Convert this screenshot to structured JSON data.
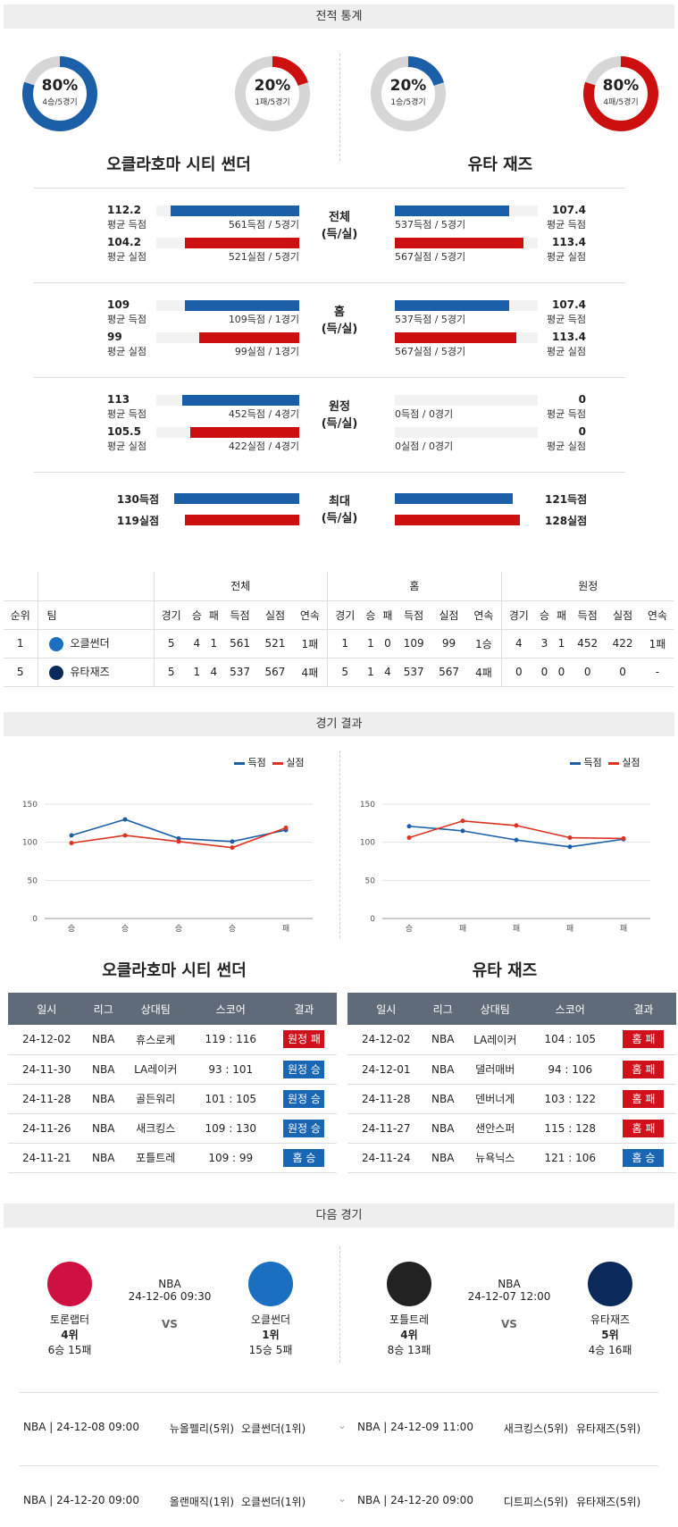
{
  "sections": {
    "stats": "전적 통계",
    "results": "경기 결과",
    "next": "다음 경기"
  },
  "teams": {
    "home": "오클라호마 시티 썬더",
    "away": "유타 재즈"
  },
  "donuts": [
    {
      "pct": "80%",
      "sub": "4승/5경기",
      "value": 0.8,
      "color": "#1a5fa8"
    },
    {
      "pct": "20%",
      "sub": "1패/5경기",
      "value": 0.2,
      "color": "#cc1010"
    },
    {
      "pct": "20%",
      "sub": "1승/5경기",
      "value": 0.2,
      "color": "#1a5fa8"
    },
    {
      "pct": "80%",
      "sub": "4패/5경기",
      "value": 0.8,
      "color": "#cc1010"
    }
  ],
  "stat_groups": [
    {
      "mid": [
        "전체",
        "(득/실)"
      ],
      "left": [
        {
          "val": "112.2",
          "lbl": "평균 득점",
          "cap": "561득점 / 5경기",
          "ratio": 0.9,
          "type": "blue"
        },
        {
          "val": "104.2",
          "lbl": "평균 실점",
          "cap": "521실점 / 5경기",
          "ratio": 0.8,
          "type": "red"
        }
      ],
      "right": [
        {
          "val": "107.4",
          "lbl": "평균 득점",
          "cap": "537득점 / 5경기",
          "ratio": 0.8,
          "type": "blue"
        },
        {
          "val": "113.4",
          "lbl": "평균 실점",
          "cap": "567실점 / 5경기",
          "ratio": 0.9,
          "type": "red"
        }
      ]
    },
    {
      "mid": [
        "홈",
        "(득/실)"
      ],
      "left": [
        {
          "val": "109",
          "lbl": "평균 득점",
          "cap": "109득점 / 1경기",
          "ratio": 0.8,
          "type": "blue"
        },
        {
          "val": "99",
          "lbl": "평균 실점",
          "cap": "99실점 / 1경기",
          "ratio": 0.7,
          "type": "red"
        }
      ],
      "right": [
        {
          "val": "107.4",
          "lbl": "평균 득점",
          "cap": "537득점 / 5경기",
          "ratio": 0.8,
          "type": "blue"
        },
        {
          "val": "113.4",
          "lbl": "평균 실점",
          "cap": "567실점 / 5경기",
          "ratio": 0.85,
          "type": "red"
        }
      ]
    },
    {
      "mid": [
        "원정",
        "(득/실)"
      ],
      "left": [
        {
          "val": "113",
          "lbl": "평균 득점",
          "cap": "452득점 / 4경기",
          "ratio": 0.82,
          "type": "blue"
        },
        {
          "val": "105.5",
          "lbl": "평균 실점",
          "cap": "422실점 / 4경기",
          "ratio": 0.76,
          "type": "red"
        }
      ],
      "right": [
        {
          "val": "0",
          "lbl": "평균 득점",
          "cap": "0득점 / 0경기",
          "ratio": 0,
          "type": "blue"
        },
        {
          "val": "0",
          "lbl": "평균 실점",
          "cap": "0실점 / 0경기",
          "ratio": 0,
          "type": "red"
        }
      ]
    }
  ],
  "max_group": {
    "mid": [
      "최대",
      "(득/실)"
    ],
    "left": [
      {
        "val": "130득점",
        "ratio": 0.93,
        "type": "blue"
      },
      {
        "val": "119실점",
        "ratio": 0.85,
        "type": "red"
      }
    ],
    "right": [
      {
        "val": "121득점",
        "ratio": 0.88,
        "type": "blue"
      },
      {
        "val": "128실점",
        "ratio": 0.93,
        "type": "red"
      }
    ]
  },
  "standings": {
    "groups": [
      "전체",
      "홈",
      "원정"
    ],
    "head": [
      "순위",
      "팀"
    ],
    "cols": [
      "경기",
      "승",
      "패",
      "득점",
      "실점",
      "연속"
    ],
    "rows": [
      {
        "rank": "1",
        "team": "오클썬더",
        "logo": "#1a6fc0",
        "vals": [
          "5",
          "4",
          "1",
          "561",
          "521",
          "1패",
          "1",
          "1",
          "0",
          "109",
          "99",
          "1승",
          "4",
          "3",
          "1",
          "452",
          "422",
          "1패"
        ]
      },
      {
        "rank": "5",
        "team": "유타재즈",
        "logo": "#0b2a5b",
        "vals": [
          "5",
          "1",
          "4",
          "537",
          "567",
          "4패",
          "5",
          "1",
          "4",
          "537",
          "567",
          "4패",
          "0",
          "0",
          "0",
          "0",
          "0",
          "-"
        ]
      }
    ]
  },
  "chart_legend": {
    "score": "득점",
    "lost": "실점"
  },
  "chart_data": [
    {
      "type": "line",
      "categories": [
        "승",
        "승",
        "승",
        "승",
        "패"
      ],
      "ylim": [
        0,
        150
      ],
      "yticks": [
        0,
        50,
        100,
        150
      ],
      "series": [
        {
          "name": "득점",
          "color": "#1a5fa8",
          "values": [
            109,
            130,
            105,
            101,
            116
          ]
        },
        {
          "name": "실점",
          "color": "#dd3322",
          "values": [
            99,
            109,
            101,
            93,
            119
          ]
        }
      ]
    },
    {
      "type": "line",
      "categories": [
        "승",
        "패",
        "패",
        "패",
        "패"
      ],
      "ylim": [
        0,
        150
      ],
      "yticks": [
        0,
        50,
        100,
        150
      ],
      "series": [
        {
          "name": "득점",
          "color": "#1a5fa8",
          "values": [
            121,
            115,
            103,
            94,
            104
          ]
        },
        {
          "name": "실점",
          "color": "#dd3322",
          "values": [
            106,
            128,
            122,
            106,
            105
          ]
        }
      ]
    }
  ],
  "results_head": [
    "일시",
    "리그",
    "상대팀",
    "스코어",
    "결과"
  ],
  "results_left": [
    [
      "24-12-02",
      "NBA",
      "휴스로케",
      "119 : 116",
      "원정 패",
      "red"
    ],
    [
      "24-11-30",
      "NBA",
      "LA레이커",
      "93 : 101",
      "원정 승",
      "blue"
    ],
    [
      "24-11-28",
      "NBA",
      "골든워리",
      "101 : 105",
      "원정 승",
      "blue"
    ],
    [
      "24-11-26",
      "NBA",
      "새크킹스",
      "109 : 130",
      "원정 승",
      "blue"
    ],
    [
      "24-11-21",
      "NBA",
      "포틀트레",
      "109 : 99",
      "홈 승",
      "blue"
    ]
  ],
  "results_right": [
    [
      "24-12-02",
      "NBA",
      "LA레이커",
      "104 : 105",
      "홈 패",
      "red"
    ],
    [
      "24-12-01",
      "NBA",
      "댈러매버",
      "94 : 106",
      "홈 패",
      "red"
    ],
    [
      "24-11-28",
      "NBA",
      "덴버너게",
      "103 : 122",
      "홈 패",
      "red"
    ],
    [
      "24-11-27",
      "NBA",
      "샌안스퍼",
      "115 : 128",
      "홈 패",
      "red"
    ],
    [
      "24-11-24",
      "NBA",
      "뉴욕닉스",
      "121 : 106",
      "홈 승",
      "blue"
    ]
  ],
  "next_games": [
    {
      "league": "NBA",
      "time": "24-12-06 09:30",
      "vs": "VS",
      "a": {
        "name": "토론랩터",
        "rank": "4위",
        "rec": "6승 15패",
        "color": "#ce1141"
      },
      "b": {
        "name": "오클썬더",
        "rank": "1위",
        "rec": "15승 5패",
        "color": "#1a6fc0"
      }
    },
    {
      "league": "NBA",
      "time": "24-12-07 12:00",
      "vs": "VS",
      "a": {
        "name": "포틀트레",
        "rank": "4위",
        "rec": "8승 13패",
        "color": "#222222"
      },
      "b": {
        "name": "유타재즈",
        "rank": "5위",
        "rec": "4승 16패",
        "color": "#0b2a5b"
      }
    }
  ],
  "upcoming": [
    {
      "l_info": "NBA | 24-12-08 09:00",
      "l_a": "뉴올펠리(5위)",
      "l_b": "오클썬더(1위)",
      "r_info": "NBA | 24-12-09 11:00",
      "r_a": "새크킹스(5위)",
      "r_b": "유타재즈(5위)"
    },
    {
      "l_info": "NBA | 24-12-20 09:00",
      "l_a": "올랜매직(1위)",
      "l_b": "오클썬더(1위)",
      "r_info": "NBA | 24-12-20 09:00",
      "r_a": "디트피스(5위)",
      "r_b": "유타재즈(5위)"
    }
  ]
}
